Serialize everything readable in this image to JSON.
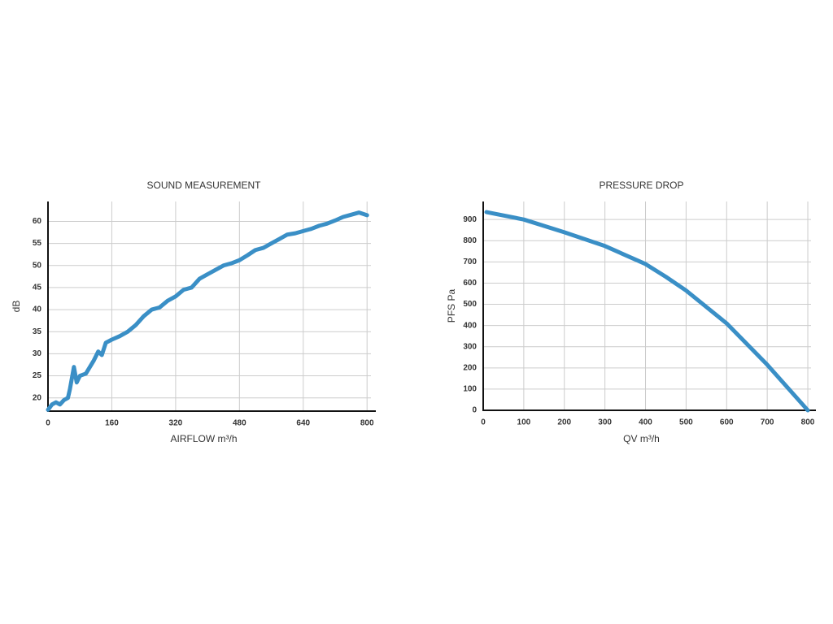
{
  "chart_data": [
    {
      "type": "line",
      "title": "SOUND MEASUREMENT",
      "xlabel": "AIRFLOW m³/h",
      "ylabel": "dB",
      "color": "#3a8fc6",
      "grid": true,
      "x": [
        0,
        10,
        20,
        30,
        40,
        50,
        55,
        65,
        72,
        80,
        95,
        105,
        115,
        126,
        135,
        145,
        160,
        180,
        200,
        220,
        240,
        260,
        280,
        300,
        320,
        340,
        360,
        380,
        400,
        420,
        440,
        460,
        480,
        500,
        520,
        540,
        560,
        580,
        600,
        620,
        640,
        660,
        680,
        700,
        720,
        740,
        760,
        780,
        800
      ],
      "values": [
        17.3,
        18.5,
        19,
        18.5,
        19.5,
        20,
        22,
        27,
        23.5,
        25,
        25.5,
        27,
        28.5,
        30.5,
        29.7,
        32.5,
        33.2,
        34,
        35,
        36.5,
        38.5,
        40,
        40.5,
        42,
        43,
        44.5,
        45,
        47,
        48,
        49,
        50,
        50.5,
        51.2,
        52.3,
        53.5,
        54,
        55,
        56,
        57,
        57.3,
        57.8,
        58.3,
        59,
        59.5,
        60.2,
        61,
        61.5,
        62,
        61.4
      ],
      "xlim": [
        0,
        822
      ],
      "xticks": [
        0,
        160,
        320,
        480,
        640,
        800
      ],
      "ylim": [
        17,
        64.5
      ],
      "yticks": [
        20,
        25,
        30,
        35,
        40,
        45,
        50,
        55,
        60
      ]
    },
    {
      "type": "line",
      "title": "PRESSURE DROP",
      "xlabel": "QV m³/h",
      "ylabel": "PFS Pa",
      "color": "#3a8fc6",
      "grid": true,
      "x": [
        8,
        100,
        200,
        300,
        400,
        450,
        500,
        600,
        700,
        800
      ],
      "values": [
        935,
        900,
        840,
        775,
        690,
        630,
        565,
        410,
        215,
        0
      ],
      "xlim": [
        0,
        820
      ],
      "xticks": [
        0,
        100,
        200,
        300,
        400,
        500,
        600,
        700,
        800
      ],
      "ylim": [
        0,
        985
      ],
      "yticks": [
        0,
        100,
        200,
        300,
        400,
        500,
        600,
        700,
        800,
        900
      ]
    }
  ]
}
